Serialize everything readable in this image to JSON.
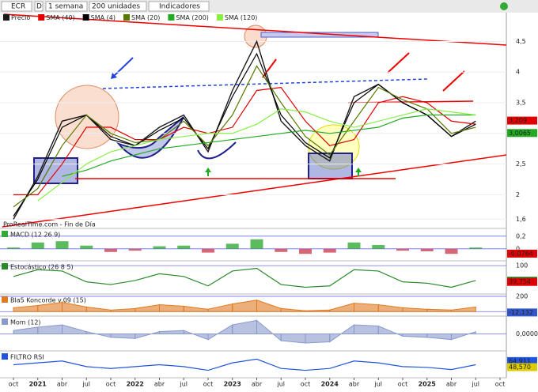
{
  "toolbar": {
    "symbol": "ECR",
    "mode": "D",
    "period": "1 semana",
    "units": "200 unidades",
    "indicators": "Indicadores"
  },
  "footer": "ProRealTime.com - Fin de Día",
  "chart_data": [
    {
      "type": "line",
      "categories": [
        "oct",
        "2021",
        "abr",
        "jul",
        "oct",
        "2022",
        "abr",
        "jul",
        "oct",
        "2023",
        "abr",
        "jul",
        "oct",
        "2024",
        "abr",
        "jul",
        "oct",
        "2025",
        "abr",
        "jul",
        "oct"
      ],
      "series": [
        {
          "name": "Precio",
          "color": "#1a1a1a",
          "values": [
            1.6,
            2.3,
            3.2,
            3.3,
            2.9,
            2.8,
            3.1,
            3.3,
            2.7,
            3.7,
            4.5,
            3.2,
            2.8,
            2.55,
            3.6,
            3.8,
            3.5,
            3.3,
            2.95,
            3.2,
            null
          ]
        },
        {
          "name": "SMA (40)",
          "color": "#e00000",
          "values": [
            2.0,
            2.0,
            2.5,
            3.1,
            3.1,
            2.9,
            2.9,
            3.1,
            3.0,
            3.1,
            3.7,
            3.75,
            3.2,
            2.8,
            2.9,
            3.5,
            3.6,
            3.5,
            3.2,
            3.15,
            null
          ]
        },
        {
          "name": "SMA (4)",
          "color": "#000000",
          "values": [
            1.65,
            2.25,
            3.1,
            3.3,
            2.95,
            2.8,
            3.05,
            3.25,
            2.75,
            3.6,
            4.3,
            3.3,
            2.85,
            2.6,
            3.5,
            3.8,
            3.5,
            3.3,
            2.95,
            3.15,
            null
          ]
        },
        {
          "name": "SMA (20)",
          "color": "#557a00",
          "values": [
            1.8,
            2.1,
            2.8,
            3.3,
            3.0,
            2.85,
            2.9,
            3.2,
            2.8,
            3.3,
            4.1,
            3.5,
            2.95,
            2.65,
            3.2,
            3.75,
            3.55,
            3.4,
            3.0,
            3.1,
            null
          ]
        },
        {
          "name": "SMA (200)",
          "color": "#22aa22",
          "values": [
            null,
            null,
            2.3,
            2.4,
            2.55,
            2.65,
            2.75,
            2.8,
            2.85,
            2.9,
            2.95,
            3.0,
            3.05,
            3.0,
            3.05,
            3.1,
            3.25,
            3.3,
            3.3,
            3.3,
            null
          ]
        },
        {
          "name": "SMA (120)",
          "color": "#88ee44",
          "values": [
            null,
            1.9,
            2.2,
            2.5,
            2.7,
            2.8,
            2.9,
            2.95,
            3.0,
            3.0,
            3.15,
            3.4,
            3.35,
            3.2,
            3.1,
            3.2,
            3.3,
            3.4,
            3.35,
            3.3,
            null
          ]
        }
      ],
      "ylim": [
        1.45,
        4.97
      ],
      "yticks": [
        {
          "value": 1.6,
          "label": "1,6"
        },
        2,
        {
          "value": 2.5,
          "label": "2,5"
        },
        3,
        {
          "value": 3.5,
          "label": "3,5"
        },
        4,
        {
          "value": 4.5,
          "label": "4,5"
        }
      ],
      "price_labels": [
        {
          "value": 3.209,
          "label": "3,209",
          "color": "#e00000"
        },
        {
          "value": 3.0065,
          "label": "3,0065",
          "color": "#22aa22"
        }
      ]
    },
    {
      "type": "bar",
      "title": "MACD (12 26 9)",
      "color": "#33aa33",
      "values": [
        0.02,
        0.1,
        0.12,
        0.05,
        -0.05,
        -0.03,
        0.04,
        0.05,
        -0.06,
        0.08,
        0.15,
        -0.05,
        -0.08,
        -0.06,
        0.1,
        0.06,
        -0.03,
        -0.04,
        -0.08,
        0.02,
        null
      ],
      "ylim": [
        -0.19,
        0.31
      ],
      "yticks": [
        {
          "value": 0.2,
          "label": "0,2"
        },
        0
      ],
      "price_labels": [
        {
          "value": -0.0764,
          "label": "-0,0764",
          "color": "#e00000"
        }
      ]
    },
    {
      "type": "line",
      "title": "Estocástico (26 8 5)",
      "color": "#2a8a2a",
      "values": [
        60,
        85,
        80,
        40,
        30,
        45,
        70,
        60,
        25,
        80,
        90,
        30,
        20,
        25,
        85,
        80,
        40,
        35,
        20,
        45,
        null
      ],
      "ylim": [
        -5,
        115
      ],
      "yticks": [
        100
      ],
      "price_labels": [
        {
          "value": 44.349,
          "label": "44,349",
          "color": "#2a8a2a"
        },
        {
          "value": 39.754,
          "label": "39,754",
          "color": "#e00000"
        }
      ]
    },
    {
      "type": "area",
      "title": "Bla5 Koncorde v.09 (15)",
      "color": "#e07a20",
      "values": [
        50,
        80,
        120,
        60,
        20,
        40,
        90,
        70,
        30,
        100,
        150,
        40,
        10,
        20,
        110,
        90,
        50,
        30,
        20,
        60,
        null
      ],
      "ylim": [
        -60,
        220
      ],
      "yticks": [
        200,
        0
      ],
      "price_labels": [
        {
          "value": -12.132,
          "label": "-12,132",
          "color": "#3355cc"
        }
      ]
    },
    {
      "type": "area",
      "title": "Mom (12)",
      "color": "#8899cc",
      "values": [
        0.3,
        0.6,
        0.8,
        0.2,
        -0.3,
        -0.4,
        0.2,
        0.3,
        -0.5,
        0.8,
        1.2,
        -0.6,
        -0.8,
        -0.7,
        0.8,
        0.7,
        -0.2,
        -0.3,
        -0.5,
        0.2,
        null
      ],
      "ylim": [
        -1.5,
        1.5
      ],
      "yticks": [
        {
          "value": 0,
          "label": "0,0000"
        }
      ]
    },
    {
      "type": "line",
      "title": "FILTRO RSI",
      "color": "#2255dd",
      "values": [
        55,
        60,
        65,
        50,
        45,
        50,
        55,
        50,
        40,
        60,
        70,
        45,
        40,
        45,
        65,
        60,
        50,
        48,
        42,
        55,
        null
      ],
      "ylim": [
        20,
        90
      ],
      "yticks": [],
      "price_labels": [
        {
          "value": 64.911,
          "label": "64,911",
          "color": "#2255dd"
        },
        {
          "value": 48.57,
          "label": "48,570",
          "color": "#ddcc00"
        }
      ]
    }
  ]
}
